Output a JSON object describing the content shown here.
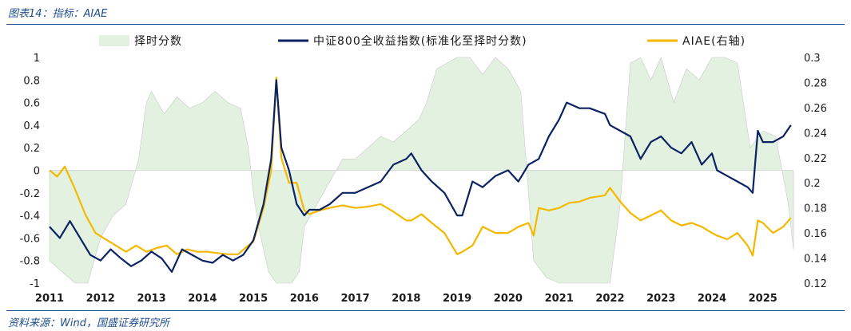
{
  "caption": "图表14：指标：AIAE",
  "source": "资料来源：Wind，国盛证券研究所",
  "chart_data": {
    "type": "line",
    "legend": [
      {
        "name": "择时分数",
        "kind": "area",
        "color": "#e3f2e0"
      },
      {
        "name": "中证800全收益指数(标准化至择时分数)",
        "kind": "line",
        "color": "#0b2263"
      },
      {
        "name": "AIAE(右轴)",
        "kind": "line",
        "color": "#f5b800"
      }
    ],
    "legend_position": "top",
    "grid": false,
    "x_ticks": [
      "2011",
      "2012",
      "2013",
      "2014",
      "2015",
      "2016",
      "2017",
      "2018",
      "2019",
      "2020",
      "2021",
      "2022",
      "2023",
      "2024",
      "2025"
    ],
    "x_range": [
      2011.0,
      2025.6
    ],
    "y_left": {
      "ticks": [
        "1",
        "0.8",
        "0.6",
        "0.4",
        "0.2",
        "0",
        "-0.2",
        "-0.4",
        "-0.6",
        "-0.8",
        "-1"
      ],
      "range": [
        -1,
        1
      ]
    },
    "y_right": {
      "ticks": [
        "0.3",
        "0.28",
        "0.26",
        "0.24",
        "0.22",
        "0.2",
        "0.18",
        "0.16",
        "0.14",
        "0.12"
      ],
      "range": [
        0.12,
        0.3
      ]
    },
    "series": [
      {
        "name": "择时分数",
        "axis": "left",
        "x": [
          2011.0,
          2011.25,
          2011.5,
          2011.75,
          2012.0,
          2012.25,
          2012.5,
          2012.75,
          2012.9,
          2013.0,
          2013.25,
          2013.5,
          2013.75,
          2014.0,
          2014.25,
          2014.5,
          2014.75,
          2014.9,
          2015.0,
          2015.1,
          2015.3,
          2015.45,
          2015.6,
          2015.75,
          2015.9,
          2016.0,
          2016.25,
          2016.5,
          2016.75,
          2017.0,
          2017.25,
          2017.5,
          2017.75,
          2018.0,
          2018.25,
          2018.4,
          2018.6,
          2018.8,
          2019.0,
          2019.25,
          2019.5,
          2019.75,
          2020.0,
          2020.25,
          2020.5,
          2020.75,
          2021.0,
          2021.5,
          2022.0,
          2022.2,
          2022.4,
          2022.6,
          2022.8,
          2023.0,
          2023.25,
          2023.5,
          2023.75,
          2024.0,
          2024.25,
          2024.5,
          2024.75,
          2025.0,
          2025.25,
          2025.5,
          2025.6
        ],
        "y": [
          -0.8,
          -0.9,
          -1.0,
          -1.0,
          -0.6,
          -0.4,
          -0.3,
          0.1,
          0.6,
          0.7,
          0.5,
          0.65,
          0.55,
          0.6,
          0.7,
          0.6,
          0.55,
          0.2,
          -0.2,
          -0.5,
          -0.9,
          -1.0,
          -1.0,
          -1.0,
          -0.9,
          -0.5,
          -0.3,
          -0.1,
          0.1,
          0.1,
          0.2,
          0.3,
          0.25,
          0.35,
          0.45,
          0.6,
          0.9,
          0.95,
          1.0,
          1.0,
          0.85,
          1.0,
          0.9,
          0.7,
          -0.8,
          -0.95,
          -1.0,
          -1.0,
          -1.0,
          -0.3,
          0.95,
          1.0,
          0.8,
          1.0,
          0.6,
          0.9,
          0.8,
          1.0,
          1.0,
          0.95,
          0.2,
          0.35,
          0.3,
          -0.3,
          -0.7
        ]
      },
      {
        "name": "中证800全收益指数(标准化至择时分数)",
        "axis": "left",
        "x": [
          2011.0,
          2011.2,
          2011.4,
          2011.6,
          2011.8,
          2012.0,
          2012.2,
          2012.4,
          2012.6,
          2012.8,
          2013.0,
          2013.2,
          2013.4,
          2013.6,
          2013.8,
          2014.0,
          2014.2,
          2014.4,
          2014.6,
          2014.8,
          2015.0,
          2015.2,
          2015.35,
          2015.45,
          2015.55,
          2015.7,
          2015.85,
          2016.0,
          2016.1,
          2016.3,
          2016.5,
          2016.75,
          2017.0,
          2017.25,
          2017.5,
          2017.75,
          2018.0,
          2018.1,
          2018.3,
          2018.5,
          2018.75,
          2019.0,
          2019.1,
          2019.3,
          2019.5,
          2019.75,
          2020.0,
          2020.2,
          2020.4,
          2020.6,
          2020.8,
          2021.0,
          2021.15,
          2021.4,
          2021.6,
          2021.9,
          2022.0,
          2022.2,
          2022.4,
          2022.6,
          2022.8,
          2023.0,
          2023.2,
          2023.4,
          2023.6,
          2023.8,
          2024.0,
          2024.1,
          2024.3,
          2024.5,
          2024.7,
          2024.8,
          2024.9,
          2025.0,
          2025.2,
          2025.4,
          2025.55
        ],
        "y": [
          -0.5,
          -0.6,
          -0.45,
          -0.6,
          -0.75,
          -0.8,
          -0.7,
          -0.78,
          -0.85,
          -0.8,
          -0.72,
          -0.78,
          -0.9,
          -0.7,
          -0.75,
          -0.8,
          -0.82,
          -0.75,
          -0.8,
          -0.75,
          -0.62,
          -0.3,
          0.1,
          0.8,
          0.2,
          0.0,
          -0.3,
          -0.4,
          -0.35,
          -0.35,
          -0.3,
          -0.2,
          -0.2,
          -0.15,
          -0.1,
          0.05,
          0.1,
          0.15,
          0.0,
          -0.1,
          -0.2,
          -0.4,
          -0.4,
          -0.1,
          -0.15,
          -0.05,
          0.0,
          -0.1,
          0.05,
          0.1,
          0.3,
          0.45,
          0.6,
          0.55,
          0.55,
          0.5,
          0.4,
          0.35,
          0.3,
          0.1,
          0.25,
          0.3,
          0.2,
          0.15,
          0.25,
          0.05,
          0.15,
          0.0,
          -0.05,
          -0.1,
          -0.15,
          -0.2,
          0.35,
          0.25,
          0.25,
          0.3,
          0.4
        ]
      },
      {
        "name": "AIAE(右轴)",
        "axis": "right",
        "x": [
          2011.0,
          2011.15,
          2011.3,
          2011.5,
          2011.7,
          2011.9,
          2012.1,
          2012.3,
          2012.5,
          2012.7,
          2012.9,
          2013.1,
          2013.3,
          2013.5,
          2013.7,
          2013.9,
          2014.1,
          2014.3,
          2014.5,
          2014.7,
          2014.9,
          2015.0,
          2015.2,
          2015.35,
          2015.45,
          2015.55,
          2015.7,
          2015.85,
          2016.0,
          2016.1,
          2016.3,
          2016.5,
          2016.75,
          2017.0,
          2017.25,
          2017.5,
          2017.75,
          2018.0,
          2018.1,
          2018.3,
          2018.5,
          2018.75,
          2019.0,
          2019.1,
          2019.3,
          2019.5,
          2019.75,
          2020.0,
          2020.2,
          2020.4,
          2020.5,
          2020.6,
          2020.8,
          2021.0,
          2021.2,
          2021.4,
          2021.6,
          2021.9,
          2022.0,
          2022.2,
          2022.4,
          2022.6,
          2022.8,
          2023.0,
          2023.2,
          2023.4,
          2023.6,
          2023.8,
          2024.0,
          2024.1,
          2024.3,
          2024.5,
          2024.7,
          2024.8,
          2024.9,
          2025.0,
          2025.2,
          2025.4,
          2025.55
        ],
        "y": [
          0.21,
          0.205,
          0.213,
          0.195,
          0.175,
          0.16,
          0.155,
          0.15,
          0.145,
          0.15,
          0.145,
          0.148,
          0.15,
          0.143,
          0.147,
          0.145,
          0.145,
          0.144,
          0.143,
          0.143,
          0.15,
          0.153,
          0.18,
          0.21,
          0.284,
          0.22,
          0.2,
          0.2,
          0.178,
          0.175,
          0.178,
          0.18,
          0.182,
          0.18,
          0.181,
          0.183,
          0.177,
          0.17,
          0.17,
          0.175,
          0.168,
          0.16,
          0.143,
          0.145,
          0.15,
          0.165,
          0.16,
          0.16,
          0.165,
          0.168,
          0.158,
          0.18,
          0.178,
          0.18,
          0.184,
          0.185,
          0.188,
          0.19,
          0.196,
          0.185,
          0.176,
          0.17,
          0.174,
          0.178,
          0.17,
          0.166,
          0.168,
          0.165,
          0.16,
          0.158,
          0.155,
          0.16,
          0.15,
          0.142,
          0.17,
          0.168,
          0.16,
          0.165,
          0.172
        ]
      }
    ]
  }
}
